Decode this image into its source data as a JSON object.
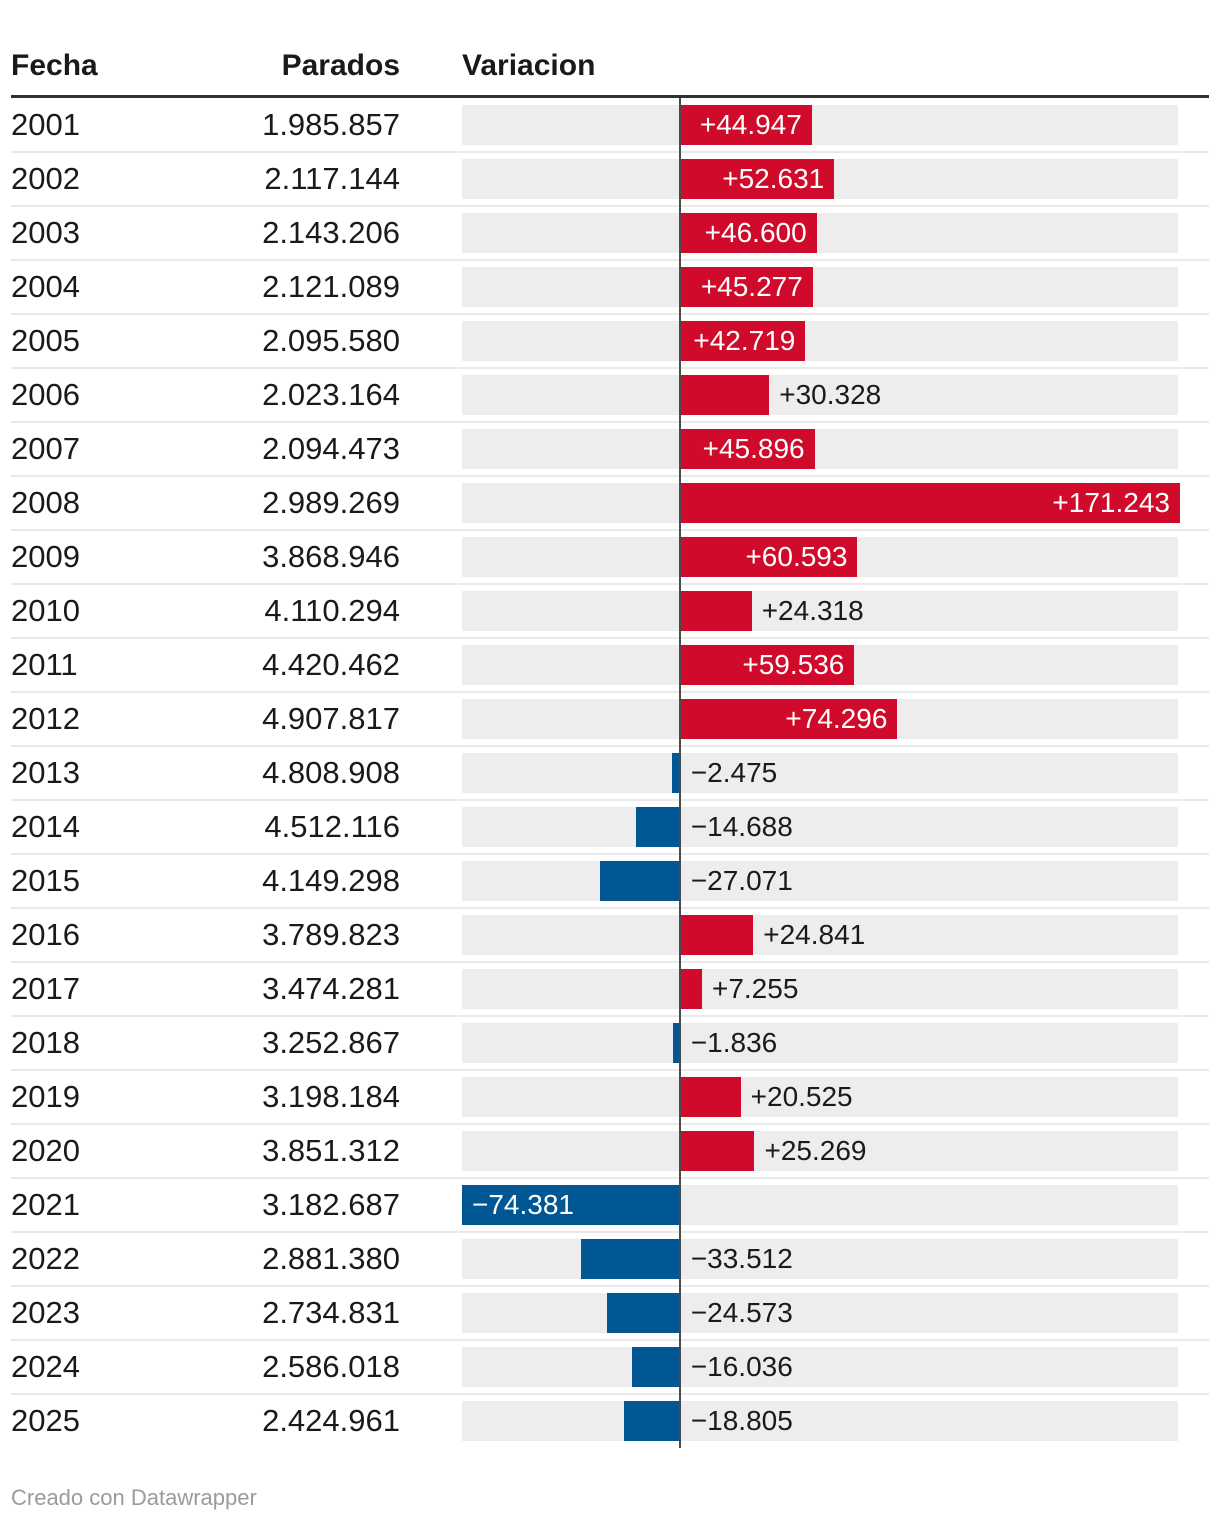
{
  "table": {
    "headers": {
      "fecha": "Fecha",
      "parados": "Parados",
      "variacion": "Variacion"
    }
  },
  "footer": {
    "credit": "Creado con Datawrapper"
  },
  "colors": {
    "positive_bar": "#d00a2b",
    "negative_bar": "#015694",
    "track": "#ededed",
    "baseline_line": "#4a4a4a",
    "header_rule": "#303030",
    "row_divider": "#e9e9e9",
    "text": "#1a1a1a",
    "label_on_bar": "#ffffff",
    "credit_text": "#9b9b9b"
  },
  "chart_data": {
    "type": "bar",
    "orientation": "horizontal",
    "title": "",
    "columns": [
      "Fecha",
      "Parados",
      "Variacion"
    ],
    "xlabel": "Variacion",
    "xlim": [
      -74381,
      171243
    ],
    "grid": false,
    "legend": false,
    "rows": [
      {
        "fecha": "2001",
        "parados": "1.985.857",
        "variacion": 44947,
        "variacion_label": "+44.947"
      },
      {
        "fecha": "2002",
        "parados": "2.117.144",
        "variacion": 52631,
        "variacion_label": "+52.631"
      },
      {
        "fecha": "2003",
        "parados": "2.143.206",
        "variacion": 46600,
        "variacion_label": "+46.600"
      },
      {
        "fecha": "2004",
        "parados": "2.121.089",
        "variacion": 45277,
        "variacion_label": "+45.277"
      },
      {
        "fecha": "2005",
        "parados": "2.095.580",
        "variacion": 42719,
        "variacion_label": "+42.719"
      },
      {
        "fecha": "2006",
        "parados": "2.023.164",
        "variacion": 30328,
        "variacion_label": "+30.328"
      },
      {
        "fecha": "2007",
        "parados": "2.094.473",
        "variacion": 45896,
        "variacion_label": "+45.896"
      },
      {
        "fecha": "2008",
        "parados": "2.989.269",
        "variacion": 171243,
        "variacion_label": "+171.243"
      },
      {
        "fecha": "2009",
        "parados": "3.868.946",
        "variacion": 60593,
        "variacion_label": "+60.593"
      },
      {
        "fecha": "2010",
        "parados": "4.110.294",
        "variacion": 24318,
        "variacion_label": "+24.318"
      },
      {
        "fecha": "2011",
        "parados": "4.420.462",
        "variacion": 59536,
        "variacion_label": "+59.536"
      },
      {
        "fecha": "2012",
        "parados": "4.907.817",
        "variacion": 74296,
        "variacion_label": "+74.296"
      },
      {
        "fecha": "2013",
        "parados": "4.808.908",
        "variacion": -2475,
        "variacion_label": "−2.475"
      },
      {
        "fecha": "2014",
        "parados": "4.512.116",
        "variacion": -14688,
        "variacion_label": "−14.688"
      },
      {
        "fecha": "2015",
        "parados": "4.149.298",
        "variacion": -27071,
        "variacion_label": "−27.071"
      },
      {
        "fecha": "2016",
        "parados": "3.789.823",
        "variacion": 24841,
        "variacion_label": "+24.841"
      },
      {
        "fecha": "2017",
        "parados": "3.474.281",
        "variacion": 7255,
        "variacion_label": "+7.255"
      },
      {
        "fecha": "2018",
        "parados": "3.252.867",
        "variacion": -1836,
        "variacion_label": "−1.836"
      },
      {
        "fecha": "2019",
        "parados": "3.198.184",
        "variacion": 20525,
        "variacion_label": "+20.525"
      },
      {
        "fecha": "2020",
        "parados": "3.851.312",
        "variacion": 25269,
        "variacion_label": "+25.269"
      },
      {
        "fecha": "2021",
        "parados": "3.182.687",
        "variacion": -74381,
        "variacion_label": "−74.381"
      },
      {
        "fecha": "2022",
        "parados": "2.881.380",
        "variacion": -33512,
        "variacion_label": "−33.512"
      },
      {
        "fecha": "2023",
        "parados": "2.734.831",
        "variacion": -24573,
        "variacion_label": "−24.573"
      },
      {
        "fecha": "2024",
        "parados": "2.586.018",
        "variacion": -16036,
        "variacion_label": "−16.036"
      },
      {
        "fecha": "2025",
        "parados": "2.424.961",
        "variacion": -18805,
        "variacion_label": "−18.805"
      }
    ]
  }
}
